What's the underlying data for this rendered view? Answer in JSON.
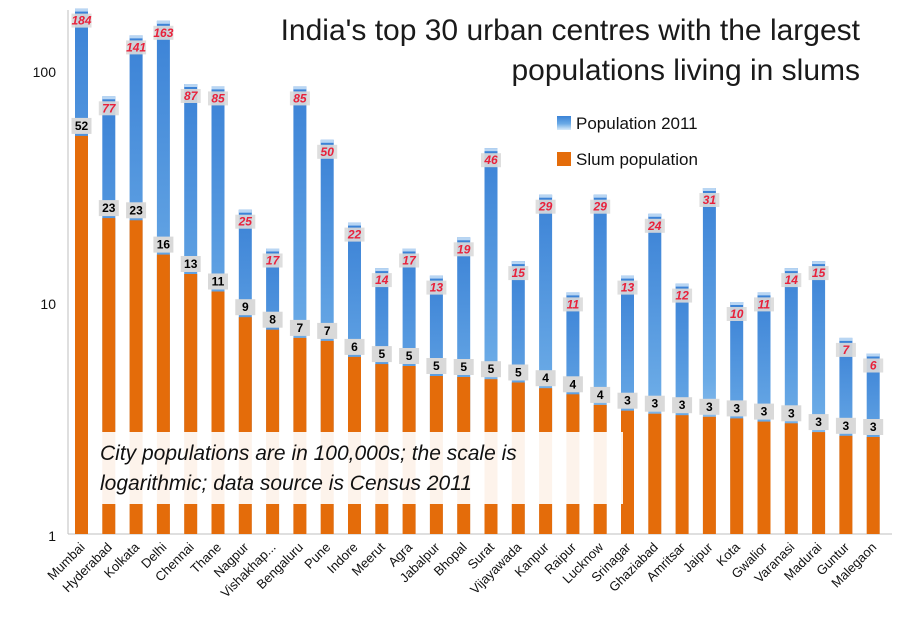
{
  "chart_data": {
    "type": "bar",
    "title_lines": [
      "India's top 30 urban centres with the largest",
      "populations living in slums"
    ],
    "scale": "log",
    "ylim": [
      1,
      200
    ],
    "ytick_labels": [
      "1",
      "10",
      "100"
    ],
    "ytick_values": [
      1,
      10,
      100
    ],
    "legend_position": "top-right",
    "grid": false,
    "categories": [
      "Mumbai",
      "Hyderabad",
      "Kolkata",
      "Delhi",
      "Chennai",
      "Thane",
      "Nagpur",
      "Vishakhap...",
      "Bengaluru",
      "Pune",
      "Indore",
      "Meerut",
      "Agra",
      "Jabalpur",
      "Bhopal",
      "Surat",
      "Vijayawada",
      "Kanpur",
      "Raipur",
      "Lucknow",
      "Srinagar",
      "Ghaziabad",
      "Amritsar",
      "Jaipur",
      "Kota",
      "Gwalior",
      "Varanasi",
      "Madurai",
      "Guntur",
      "Malegaon"
    ],
    "series": [
      {
        "name": "Population 2011",
        "color": "#4a8fd6",
        "values": [
          184,
          77,
          141,
          163,
          87,
          85,
          25,
          17,
          85,
          50,
          22,
          14,
          17,
          13,
          19,
          46,
          15,
          29,
          11,
          29,
          13,
          24,
          12,
          31,
          10,
          11,
          14,
          15,
          7,
          6
        ],
        "labels": [
          "184",
          "77",
          "141",
          "163",
          "87",
          "85",
          "25",
          "17",
          "85",
          "50",
          "22",
          "14",
          "17",
          "13",
          "19",
          "46",
          "15",
          "29",
          "11",
          "29",
          "13",
          "24",
          "12",
          "31",
          "10",
          "11",
          "14",
          "15",
          "7",
          "6"
        ]
      },
      {
        "name": "Slum population",
        "color": "#e46c0a",
        "values": [
          52,
          23,
          22.5,
          16,
          13.2,
          11.1,
          8.6,
          7.6,
          7.0,
          6.8,
          5.8,
          5.4,
          5.3,
          4.8,
          4.75,
          4.65,
          4.5,
          4.25,
          4.0,
          3.6,
          3.4,
          3.3,
          3.25,
          3.2,
          3.15,
          3.05,
          3.0,
          2.75,
          2.65,
          2.62
        ],
        "labels": [
          "52",
          "23",
          "23",
          "16",
          "13",
          "11",
          "9",
          "8",
          "7",
          "7",
          "6",
          "5",
          "5",
          "5",
          "5",
          "5",
          "5",
          "4",
          "4",
          "4",
          "3",
          "3",
          "3",
          "3",
          "3",
          "3",
          "3",
          "3",
          "3",
          "3"
        ]
      }
    ],
    "annotation_lines": [
      "City populations are in 100,000s; the scale is",
      "logarithmic; data source is Census 2011"
    ]
  }
}
